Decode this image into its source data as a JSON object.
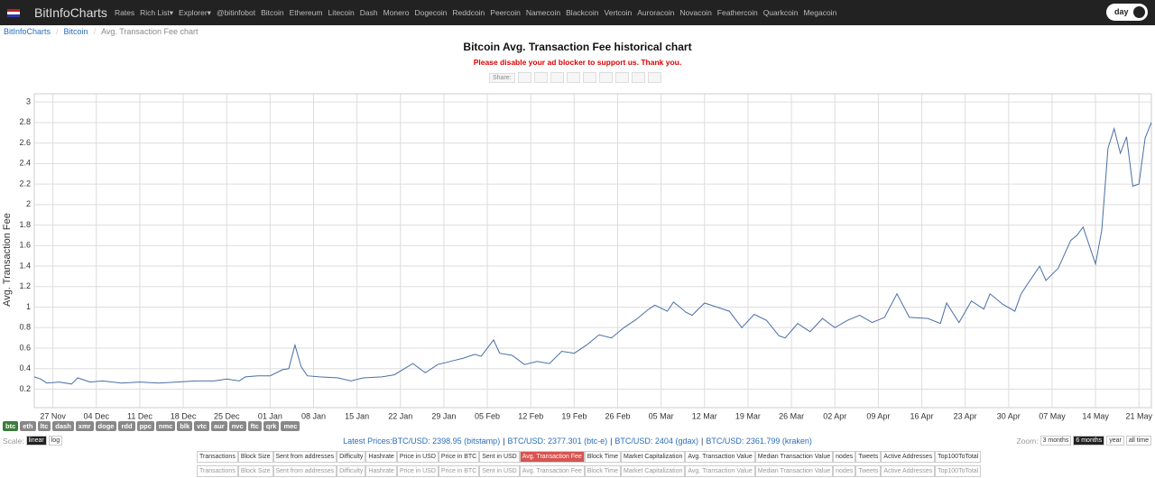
{
  "nav": {
    "brand": "BitInfoCharts",
    "items": [
      "Rates",
      "Rich List▾",
      "Explorer▾",
      "@bitinfobot",
      "Bitcoin",
      "Ethereum",
      "Litecoin",
      "Dash",
      "Monero",
      "Dogecoin",
      "Reddcoin",
      "Peercoin",
      "Namecoin",
      "Blackcoin",
      "Vertcoin",
      "Auroracoin",
      "Novacoin",
      "Feathercoin",
      "Quarkcoin",
      "Megacoin"
    ],
    "toggle": "day"
  },
  "breadcrumb": {
    "items": [
      "BitInfoCharts",
      "Bitcoin",
      "Avg. Transaction Fee chart"
    ],
    "sep": "/"
  },
  "heading": "Bitcoin Avg. Transaction Fee historical chart",
  "notice": "Please disable your ad blocker to support us. Thank you.",
  "share": "Share:",
  "chart_data": {
    "type": "line",
    "y_label": "Avg. Transaction Fee",
    "color": "#4a6fa5",
    "grid": true,
    "x": [
      "24 Nov",
      "25 Nov",
      "26 Nov",
      "28 Nov",
      "30 Nov",
      "01 Dec",
      "03 Dec",
      "05 Dec",
      "08 Dec",
      "11 Dec",
      "14 Dec",
      "17 Dec",
      "20 Dec",
      "23 Dec",
      "25 Dec",
      "27 Dec",
      "28 Dec",
      "30 Dec",
      "01 Jan",
      "03 Jan",
      "04 Jan",
      "05 Jan",
      "06 Jan",
      "07 Jan",
      "09 Jan",
      "12 Jan",
      "14 Jan",
      "16 Jan",
      "19 Jan",
      "21 Jan",
      "24 Jan",
      "26 Jan",
      "28 Jan",
      "30 Jan",
      "01 Feb",
      "03 Feb",
      "04 Feb",
      "06 Feb",
      "07 Feb",
      "09 Feb",
      "11 Feb",
      "13 Feb",
      "15 Feb",
      "17 Feb",
      "19 Feb",
      "21 Feb",
      "23 Feb",
      "25 Feb",
      "27 Feb",
      "01 Mar",
      "03 Mar",
      "04 Mar",
      "06 Mar",
      "07 Mar",
      "09 Mar",
      "10 Mar",
      "12 Mar",
      "14 Mar",
      "16 Mar",
      "18 Mar",
      "20 Mar",
      "22 Mar",
      "24 Mar",
      "25 Mar",
      "27 Mar",
      "29 Mar",
      "31 Mar",
      "02 Apr",
      "04 Apr",
      "06 Apr",
      "08 Apr",
      "10 Apr",
      "12 Apr",
      "14 Apr",
      "17 Apr",
      "19 Apr",
      "20 Apr",
      "22 Apr",
      "24 Apr",
      "26 Apr",
      "27 Apr",
      "29 Apr",
      "01 May",
      "02 May",
      "03 May",
      "05 May",
      "06 May",
      "08 May",
      "10 May",
      "11 May",
      "12 May",
      "14 May",
      "15 May",
      "16 May",
      "17 May",
      "18 May",
      "19 May",
      "20 May",
      "21 May",
      "22 May",
      "23 May"
    ],
    "values": [
      0.32,
      0.3,
      0.26,
      0.27,
      0.25,
      0.31,
      0.27,
      0.28,
      0.26,
      0.27,
      0.26,
      0.27,
      0.28,
      0.28,
      0.3,
      0.28,
      0.32,
      0.33,
      0.33,
      0.39,
      0.4,
      0.63,
      0.42,
      0.33,
      0.32,
      0.31,
      0.28,
      0.31,
      0.32,
      0.34,
      0.45,
      0.36,
      0.44,
      0.47,
      0.5,
      0.54,
      0.52,
      0.68,
      0.55,
      0.53,
      0.44,
      0.47,
      0.45,
      0.57,
      0.55,
      0.63,
      0.73,
      0.7,
      0.8,
      0.88,
      0.98,
      1.02,
      0.96,
      1.05,
      0.95,
      0.92,
      1.04,
      1.0,
      0.96,
      0.8,
      0.93,
      0.87,
      0.72,
      0.7,
      0.84,
      0.76,
      0.89,
      0.8,
      0.87,
      0.92,
      0.85,
      0.9,
      1.13,
      0.9,
      0.89,
      0.84,
      1.04,
      0.85,
      1.06,
      0.98,
      1.13,
      1.03,
      0.96,
      1.13,
      1.22,
      1.4,
      1.26,
      1.38,
      1.65,
      1.7,
      1.78,
      1.42,
      1.75,
      2.55,
      2.74,
      2.5,
      2.66,
      2.18,
      2.2,
      2.65,
      2.8
    ],
    "xlim": [
      "24 Nov",
      "23 May"
    ],
    "xticks": [
      "27 Nov",
      "04 Dec",
      "11 Dec",
      "18 Dec",
      "25 Dec",
      "01 Jan",
      "08 Jan",
      "15 Jan",
      "22 Jan",
      "29 Jan",
      "05 Feb",
      "12 Feb",
      "19 Feb",
      "26 Feb",
      "05 Mar",
      "12 Mar",
      "19 Mar",
      "26 Mar",
      "02 Apr",
      "09 Apr",
      "16 Apr",
      "23 Apr",
      "30 Apr",
      "07 May",
      "14 May",
      "21 May"
    ],
    "ylim": [
      0.02,
      3.08
    ],
    "yticks": [
      0.2,
      0.4,
      0.6,
      0.8,
      1,
      1.2,
      1.4,
      1.6,
      1.8,
      2,
      2.2,
      2.4,
      2.6,
      2.8,
      3
    ]
  },
  "coins": [
    "btc",
    "eth",
    "ltc",
    "dash",
    "xmr",
    "doge",
    "rdd",
    "ppc",
    "nmc",
    "blk",
    "vtc",
    "aur",
    "nvc",
    "ftc",
    "qrk",
    "mec"
  ],
  "scale": {
    "label": "Scale:",
    "options": [
      "linear",
      "log"
    ]
  },
  "prices": {
    "label": "Latest Prices:",
    "sep": "|",
    "items": [
      "BTC/USD: 2398.95 (bitstamp)",
      "BTC/USD: 2377.301 (btc-e)",
      "BTC/USD: 2404 (gdax)",
      "BTC/USD: 2361.799 (kraken)"
    ]
  },
  "zoom": {
    "label": "Zoom:",
    "options": [
      "3 months",
      "6 months",
      "year",
      "all time"
    ]
  },
  "tabs": {
    "row1": [
      "Transactions",
      "Block Size",
      "Sent from addresses",
      "Difficulty",
      "Hashrate",
      "Price in USD",
      "Price in BTC",
      "Sent in USD",
      "Avg. Transaction Fee",
      "Block Time",
      "Market Capitalization",
      "Avg. Transaction Value",
      "Median Transaction Value",
      "nodes",
      "Tweets",
      "Active Addresses",
      "Top100ToTotal"
    ],
    "row2": [
      "Transactions",
      "Block Size",
      "Sent from addresses",
      "Difficulty",
      "Hashrate",
      "Price in USD",
      "Price in BTC",
      "Sent in USD",
      "Avg. Transaction Fee",
      "Block Time",
      "Market Capitalization",
      "Avg. Transaction Value",
      "Median Transaction Value",
      "nodes",
      "Tweets",
      "Active Addresses",
      "Top100ToTotal"
    ]
  }
}
